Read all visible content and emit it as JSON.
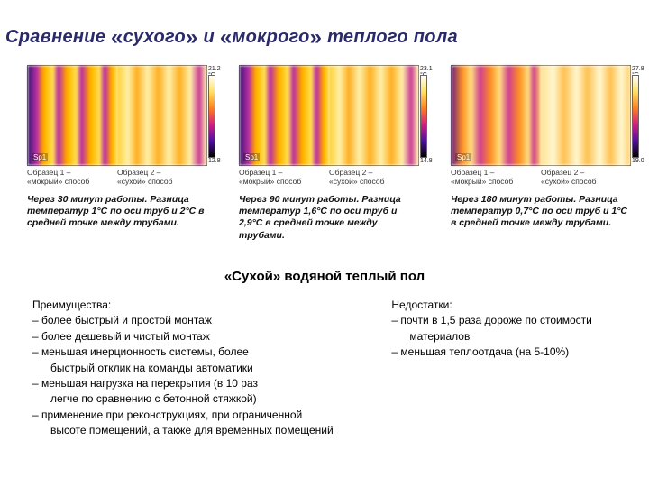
{
  "title_parts": {
    "w1": "Сравнение ",
    "q1": "«",
    "w2": "сухого",
    "q2": "»",
    "w3": " и ",
    "q3": "«",
    "w4": "мокрого",
    "q4": "»",
    "w5": " теплого пола"
  },
  "panels": [
    {
      "scale_top": "21.2 °C",
      "scale_bot": "12.8",
      "sp": "Sp1",
      "cap_left_l1": "Образец 1 –",
      "cap_left_l2": "«мокрый» способ",
      "cap_right_l1": "Образец 2 –",
      "cap_right_l2": "«сухой» способ",
      "desc": "Через 30 минут работы. Разница температур 1°С по оси труб и 2°С в средней точке между трубами."
    },
    {
      "scale_top": "23.1 °C",
      "scale_bot": "14.8",
      "sp": "Sp1",
      "cap_left_l1": "Образец 1 –",
      "cap_left_l2": "«мокрый» способ",
      "cap_right_l1": "Образец 2 –",
      "cap_right_l2": "«сухой» способ",
      "desc": "Через 90 минут работы. Разница температур 1,6°С по оси труб и 2,9°С в средней точке между трубами."
    },
    {
      "scale_top": "27.8 °C",
      "scale_bot": "19.0",
      "sp": "Sp1",
      "cap_left_l1": "Образец 1 –",
      "cap_left_l2": "«мокрый» способ",
      "cap_right_l1": "Образец 2 –",
      "cap_right_l2": "«сухой» способ",
      "desc": "Через 180 минут работы. Разница температур 0,7°С по оси труб и 1°С в средней точке между трубами."
    }
  ],
  "subheading": "«Сухой» водяной теплый пол",
  "advantages": {
    "title": "Преимущества:",
    "items": [
      {
        "l1": "– более быстрый и простой монтаж"
      },
      {
        "l1": "– более дешевый и чистый монтаж"
      },
      {
        "l1": "– меньшая инерционность системы, более",
        "l2": "быстрый отклик на команды автоматики"
      },
      {
        "l1": "– меньшая нагрузка на перекрытия (в 10 раз",
        "l2": "легче по сравнению с бетонной стяжкой)"
      },
      {
        "l1": "– применение при реконструкциях, при ограниченной",
        "l2": "высоте помещений, а также для временных помещений"
      }
    ]
  },
  "disadvantages": {
    "title": "Недостатки:",
    "items": [
      {
        "l1": "– почти в 1,5 раза дороже по стоимости",
        "l2": "материалов"
      },
      {
        "l1": "– меньшая теплоотдача (на 5-10%)"
      }
    ]
  }
}
